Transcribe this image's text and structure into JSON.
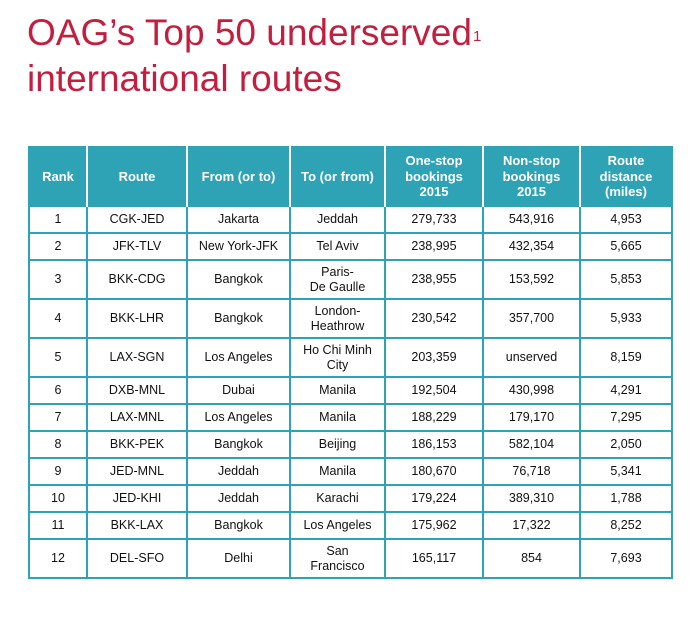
{
  "title": {
    "line1": "OAG’s Top 50 underserved",
    "footnote_mark": "1",
    "line2": "international routes"
  },
  "table": {
    "columns": [
      "Rank",
      "Route",
      "From (or to)",
      "To (or from)",
      "One-stop\nbookings\n2015",
      "Non-stop\nbookings\n2015",
      "Route\ndistance\n(miles)"
    ],
    "rows": [
      {
        "rank": "1",
        "route": "CGK-JED",
        "from": "Jakarta",
        "to": "Jeddah",
        "one_stop": "279,733",
        "non_stop": "543,916",
        "distance": "4,953"
      },
      {
        "rank": "2",
        "route": "JFK-TLV",
        "from": "New York-JFK",
        "to": "Tel Aviv",
        "one_stop": "238,995",
        "non_stop": "432,354",
        "distance": "5,665"
      },
      {
        "rank": "3",
        "route": "BKK-CDG",
        "from": "Bangkok",
        "to": "Paris-\nDe Gaulle",
        "one_stop": "238,955",
        "non_stop": "153,592",
        "distance": "5,853"
      },
      {
        "rank": "4",
        "route": "BKK-LHR",
        "from": "Bangkok",
        "to": "London-\nHeathrow",
        "one_stop": "230,542",
        "non_stop": "357,700",
        "distance": "5,933"
      },
      {
        "rank": "5",
        "route": "LAX-SGN",
        "from": "Los Angeles",
        "to": "Ho Chi Minh\nCity",
        "one_stop": "203,359",
        "non_stop": "unserved",
        "distance": "8,159"
      },
      {
        "rank": "6",
        "route": "DXB-MNL",
        "from": "Dubai",
        "to": "Manila",
        "one_stop": "192,504",
        "non_stop": "430,998",
        "distance": "4,291"
      },
      {
        "rank": "7",
        "route": "LAX-MNL",
        "from": "Los Angeles",
        "to": "Manila",
        "one_stop": "188,229",
        "non_stop": "179,170",
        "distance": "7,295"
      },
      {
        "rank": "8",
        "route": "BKK-PEK",
        "from": "Bangkok",
        "to": "Beijing",
        "one_stop": "186,153",
        "non_stop": "582,104",
        "distance": "2,050"
      },
      {
        "rank": "9",
        "route": "JED-MNL",
        "from": "Jeddah",
        "to": "Manila",
        "one_stop": "180,670",
        "non_stop": "76,718",
        "distance": "5,341"
      },
      {
        "rank": "10",
        "route": "JED-KHI",
        "from": "Jeddah",
        "to": "Karachi",
        "one_stop": "179,224",
        "non_stop": "389,310",
        "distance": "1,788"
      },
      {
        "rank": "11",
        "route": "BKK-LAX",
        "from": "Bangkok",
        "to": "Los Angeles",
        "one_stop": "175,962",
        "non_stop": "17,322",
        "distance": "8,252"
      },
      {
        "rank": "12",
        "route": "DEL-SFO",
        "from": "Delhi",
        "to": "San\nFrancisco",
        "one_stop": "165,117",
        "non_stop": "854",
        "distance": "7,693"
      }
    ]
  }
}
